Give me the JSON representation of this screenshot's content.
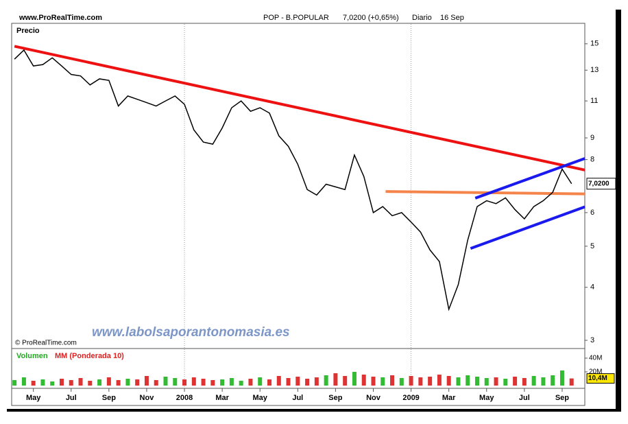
{
  "chart_data": {
    "type": "line",
    "site": "www.ProRealTime.com",
    "ticker": "POP - B.POPULAR",
    "quote": "7,0200 (+0,65%)",
    "period": "Diario",
    "date": "16 Sep",
    "panel_label": "Precio",
    "copyright": "© ProRealTime.com",
    "watermark": "www.labolsaporantonomasia.es",
    "log_scale": true,
    "x": [
      0,
      1,
      2,
      3,
      4,
      5,
      6,
      7,
      8,
      9,
      10,
      11,
      12,
      13,
      14,
      15,
      16,
      17,
      18,
      19,
      20,
      21,
      22,
      23,
      24,
      25,
      26,
      27,
      28,
      29,
      30,
      31,
      32,
      33,
      34,
      35,
      36,
      37,
      38,
      39,
      40,
      41,
      42,
      43,
      44,
      45,
      46,
      47,
      48,
      49,
      50,
      51,
      52,
      53,
      54,
      55,
      56,
      57,
      58,
      59
    ],
    "xlim": [
      -0.3,
      60.4
    ],
    "xticks": [
      {
        "value": 2,
        "label": "May"
      },
      {
        "value": 6,
        "label": "Jul"
      },
      {
        "value": 10,
        "label": "Sep"
      },
      {
        "value": 14,
        "label": "Nov"
      },
      {
        "value": 18,
        "label": "2008"
      },
      {
        "value": 22,
        "label": "Mar"
      },
      {
        "value": 26,
        "label": "May"
      },
      {
        "value": 30,
        "label": "Jul"
      },
      {
        "value": 34,
        "label": "Sep"
      },
      {
        "value": 38,
        "label": "Nov"
      },
      {
        "value": 42,
        "label": "2009"
      },
      {
        "value": 46,
        "label": "Mar"
      },
      {
        "value": 50,
        "label": "May"
      },
      {
        "value": 54,
        "label": "Jul"
      },
      {
        "value": 58,
        "label": "Sep"
      }
    ],
    "year_grid": [
      4,
      10
    ],
    "ylim": [
      2.88,
      16.7
    ],
    "yticks": [
      15,
      13,
      11,
      9,
      8,
      6,
      5,
      4,
      3
    ],
    "series": [
      {
        "name": "Precio",
        "color": "#000000",
        "values": [
          13.8,
          14.5,
          13.3,
          13.4,
          13.9,
          13.3,
          12.7,
          12.6,
          12.0,
          12.4,
          12.3,
          10.7,
          11.3,
          11.1,
          10.9,
          10.7,
          11.0,
          11.3,
          10.8,
          9.4,
          8.8,
          8.7,
          9.5,
          10.6,
          11.0,
          10.4,
          10.6,
          10.3,
          9.1,
          8.6,
          7.8,
          6.8,
          6.6,
          7.0,
          6.9,
          6.8,
          8.2,
          7.3,
          6.0,
          6.2,
          5.9,
          6.0,
          5.7,
          5.4,
          4.9,
          4.6,
          3.55,
          4.06,
          5.17,
          6.2,
          6.4,
          6.3,
          6.5,
          6.1,
          5.8,
          6.2,
          6.4,
          6.7,
          7.6,
          7.02
        ]
      }
    ],
    "last_price": {
      "value": 7.02,
      "label": "7,0200"
    },
    "trendlines": [
      {
        "color": "#ee1111",
        "x": [
          0,
          60.4
        ],
        "values": [
          14.8,
          7.56
        ]
      },
      {
        "color": "#f5844a",
        "x": [
          39.3,
          60.4
        ],
        "values": [
          6.73,
          6.64
        ]
      },
      {
        "color": "#1a1aee",
        "x": [
          48.8,
          60.4
        ],
        "values": [
          6.49,
          8.05
        ]
      },
      {
        "color": "#1a1aee",
        "x": [
          48.3,
          60.4
        ],
        "values": [
          4.94,
          6.19
        ]
      }
    ],
    "volume": {
      "label": "Volumen",
      "ma_label": "MM (Ponderada 10)",
      "ylim": [
        0,
        50
      ],
      "yticks": [
        {
          "value": 40,
          "label": "40M"
        },
        {
          "value": 20,
          "label": "20M"
        }
      ],
      "up_color": "#33bb33",
      "down_color": "#dd3333",
      "values": [
        8,
        12,
        7,
        9,
        6,
        10,
        8,
        11,
        7,
        9,
        12,
        8,
        10,
        9,
        14,
        8,
        13,
        11,
        9,
        12,
        10,
        8,
        9,
        11,
        7,
        10,
        12,
        9,
        14,
        11,
        13,
        10,
        12,
        15,
        18,
        14,
        20,
        16,
        13,
        12,
        15,
        11,
        14,
        12,
        13,
        16,
        14,
        12,
        15,
        13,
        11,
        12,
        10,
        13,
        11,
        14,
        12,
        15,
        22,
        10.4
      ],
      "last": {
        "value": 10.4,
        "label": "10,4M"
      }
    }
  }
}
